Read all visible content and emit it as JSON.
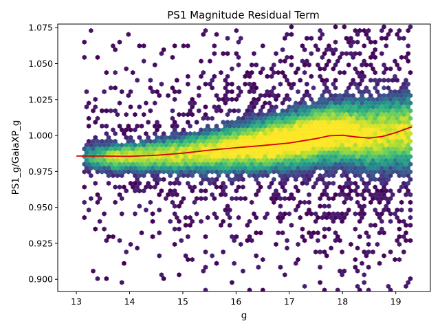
{
  "chart_data": {
    "type": "heatmap",
    "subtype": "hexbin-density-with-trend-line",
    "title": "PS1 Magnitude Residual Term",
    "xlabel": "g",
    "ylabel": "PS1_g/GaiaXP_g",
    "xlim": [
      12.65,
      19.65
    ],
    "ylim": [
      0.8915,
      1.0775
    ],
    "x_ticks": [
      "13",
      "14",
      "15",
      "16",
      "17",
      "18",
      "19"
    ],
    "y_ticks": [
      "0.900",
      "0.925",
      "0.950",
      "0.975",
      "1.000",
      "1.025",
      "1.050",
      "1.075"
    ],
    "grid": false,
    "colormap": "viridis",
    "density_ridge": [
      {
        "x": 13.3,
        "y": 0.985
      },
      {
        "x": 14.0,
        "y": 0.985
      },
      {
        "x": 15.0,
        "y": 0.987
      },
      {
        "x": 16.0,
        "y": 0.991
      },
      {
        "x": 17.0,
        "y": 0.996
      },
      {
        "x": 17.6,
        "y": 1.001
      },
      {
        "x": 18.0,
        "y": 1.002
      },
      {
        "x": 18.5,
        "y": 1.0
      },
      {
        "x": 19.0,
        "y": 1.002
      }
    ],
    "series": [
      {
        "type": "line",
        "color": "#d40000",
        "x": [
          13.0,
          13.5,
          14.0,
          14.5,
          15.0,
          15.5,
          16.0,
          16.5,
          17.0,
          17.5,
          17.75,
          18.0,
          18.25,
          18.5,
          18.75,
          19.0,
          19.3
        ],
        "y": [
          0.9857,
          0.9857,
          0.9855,
          0.9862,
          0.9877,
          0.9898,
          0.9915,
          0.993,
          0.9948,
          0.9978,
          0.9998,
          1.0002,
          0.999,
          0.9982,
          0.9993,
          1.002,
          1.006
        ]
      }
    ]
  }
}
